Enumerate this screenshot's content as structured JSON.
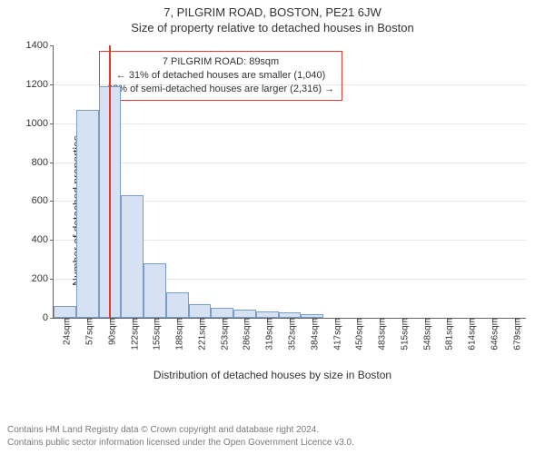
{
  "titles": {
    "main": "7, PILGRIM ROAD, BOSTON, PE21 6JW",
    "sub": "Size of property relative to detached houses in Boston"
  },
  "axes": {
    "ylabel": "Number of detached properties",
    "xlabel": "Distribution of detached houses by size in Boston",
    "ymax": 1400,
    "ytick_step": 200,
    "yticks": [
      0,
      200,
      400,
      600,
      800,
      1000,
      1200,
      1400
    ]
  },
  "chart": {
    "type": "histogram",
    "bar_fill": "#d6e2f3",
    "bar_border": "#7a9cc6",
    "marker_color": "#e33a2f",
    "background": "#ffffff",
    "grid_color": "#666666",
    "categories": [
      "24sqm",
      "57sqm",
      "90sqm",
      "122sqm",
      "155sqm",
      "188sqm",
      "221sqm",
      "253sqm",
      "286sqm",
      "319sqm",
      "352sqm",
      "384sqm",
      "417sqm",
      "450sqm",
      "483sqm",
      "515sqm",
      "548sqm",
      "581sqm",
      "614sqm",
      "646sqm",
      "679sqm"
    ],
    "values": [
      60,
      1070,
      1190,
      630,
      280,
      130,
      70,
      50,
      40,
      35,
      30,
      18,
      0,
      0,
      0,
      0,
      0,
      0,
      0,
      0,
      0
    ],
    "marker_value_sqm": 89,
    "x_min_sqm": 24,
    "x_step_sqm": 32.65
  },
  "infobox": {
    "line1": "7 PILGRIM ROAD: 89sqm",
    "line2": "← 31% of detached houses are smaller (1,040)",
    "line3": "68% of semi-detached houses are larger (2,316) →",
    "border_color": "#e33a2f"
  },
  "attribution": {
    "line1": "Contains HM Land Registry data © Crown copyright and database right 2024.",
    "line2": "Contains public sector information licensed under the Open Government Licence v3.0."
  }
}
